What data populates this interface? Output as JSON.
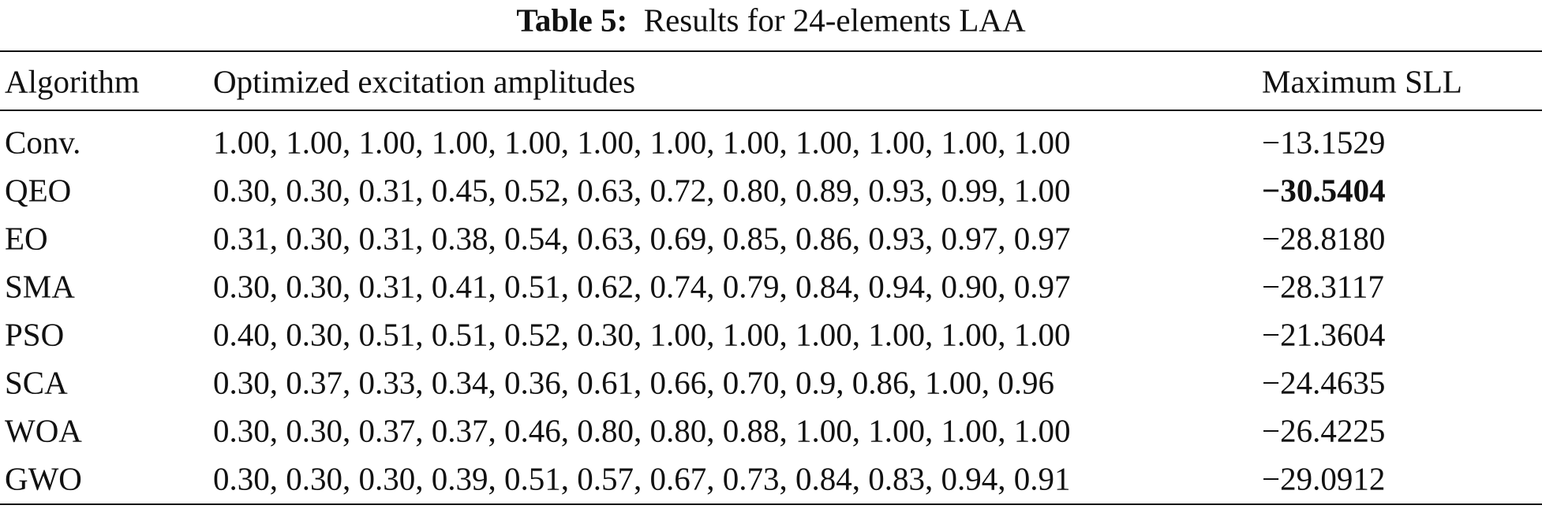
{
  "table": {
    "caption_label": "Table 5:",
    "caption_text": "Results for 24-elements LAA",
    "header": [
      "Algorithm",
      "Optimized excitation amplitudes",
      "Maximum SLL"
    ],
    "rows": [
      [
        "Conv.",
        "1.00, 1.00, 1.00, 1.00, 1.00, 1.00, 1.00, 1.00, 1.00, 1.00, 1.00, 1.00",
        "−13.1529"
      ],
      [
        "QEO",
        "0.30, 0.30, 0.31, 0.45, 0.52, 0.63, 0.72, 0.80, 0.89, 0.93, 0.99, 1.00",
        "−30.5404"
      ],
      [
        "EO",
        "0.31, 0.30, 0.31, 0.38, 0.54, 0.63, 0.69, 0.85, 0.86, 0.93, 0.97, 0.97",
        "−28.8180"
      ],
      [
        "SMA",
        "0.30, 0.30, 0.31, 0.41, 0.51, 0.62, 0.74, 0.79, 0.84, 0.94, 0.90, 0.97",
        "−28.3117"
      ],
      [
        "PSO",
        "0.40, 0.30, 0.51, 0.51, 0.52, 0.30, 1.00, 1.00, 1.00, 1.00, 1.00, 1.00",
        "−21.3604"
      ],
      [
        "SCA",
        "0.30, 0.37, 0.33, 0.34, 0.36, 0.61, 0.66, 0.70, 0.9, 0.86, 1.00, 0.96",
        "−24.4635"
      ],
      [
        "WOA",
        "0.30, 0.30, 0.37, 0.37, 0.46, 0.80, 0.80, 0.88, 1.00, 1.00, 1.00, 1.00",
        "−26.4225"
      ],
      [
        "GWO",
        "0.30, 0.30, 0.30, 0.39, 0.51, 0.57, 0.67, 0.73, 0.84, 0.83, 0.94, 0.91",
        "−29.0912"
      ]
    ]
  }
}
